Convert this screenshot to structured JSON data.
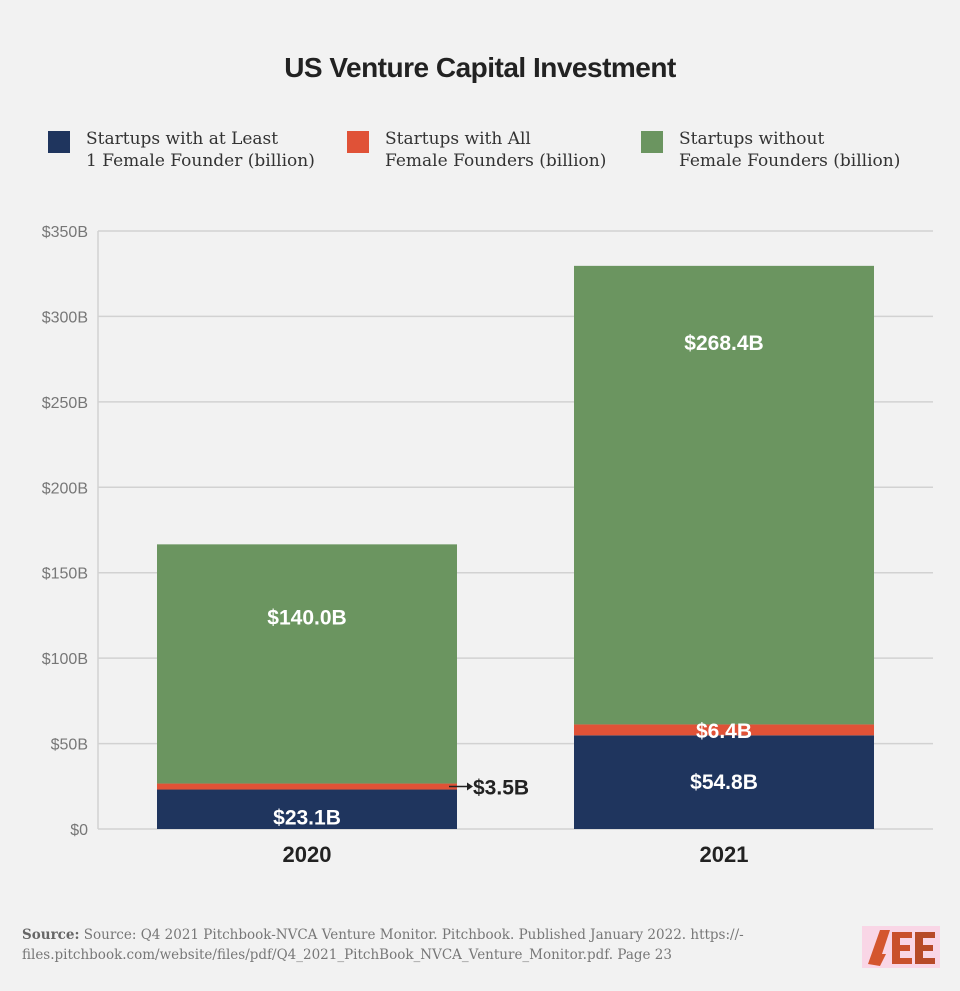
{
  "chart_data": {
    "type": "stacked-bar",
    "title": "US Venture Capital Investment",
    "categories": [
      "2020",
      "2021"
    ],
    "series": [
      {
        "name": "Startups with at Least 1 Female Founder (billion)",
        "color": "#1f355e",
        "values": [
          23.1,
          54.8
        ],
        "labels": [
          "$23.1B",
          "$54.8B"
        ]
      },
      {
        "name": "Startups with All Female Founders (billion)",
        "color": "#e05237",
        "values": [
          3.5,
          6.4
        ],
        "labels": [
          "$3.5B",
          "$6.4B"
        ]
      },
      {
        "name": "Startups without Female Founders (billion)",
        "color": "#6b9560",
        "values": [
          140.0,
          268.4
        ],
        "labels": [
          "$140.0B",
          "$268.4B"
        ]
      }
    ],
    "ylim": [
      0,
      350
    ],
    "yticks": [
      0,
      50,
      100,
      150,
      200,
      250,
      300,
      350
    ],
    "ytick_labels": [
      "$0",
      "$50B",
      "$100B",
      "$150B",
      "$200B",
      "$250B",
      "$300B",
      "$350B"
    ],
    "grid": true,
    "legend": "top"
  },
  "legend": [
    {
      "line1": "Startups with at Least",
      "line2": "1 Female Founder (billion)"
    },
    {
      "line1": "Startups with All",
      "line2": "Female Founders (billion)"
    },
    {
      "line1": "Startups without",
      "line2": "Female Founders (billion)"
    }
  ],
  "source": {
    "label": "Source:",
    "text": "Source: Q4 2021 Pitchbook-NVCA Venture Monitor. Pitchbook. Published January 2022. https://-files.pitchbook.com/website/files/pdf/Q4_2021_PitchBook_NVCA_Venture_Monitor.pdf. Page 23"
  },
  "logo": {
    "text": "AEE",
    "color": "#d4562e"
  }
}
